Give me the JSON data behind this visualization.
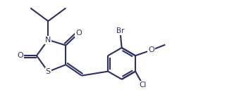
{
  "bg_color": "#ffffff",
  "bond_color": "#2d3060",
  "atom_color": "#2d3060",
  "linewidth": 1.5,
  "figsize": [
    3.22,
    1.48
  ],
  "dpi": 100,
  "xlim": [
    0.0,
    6.5
  ],
  "ylim": [
    -0.2,
    3.2
  ]
}
